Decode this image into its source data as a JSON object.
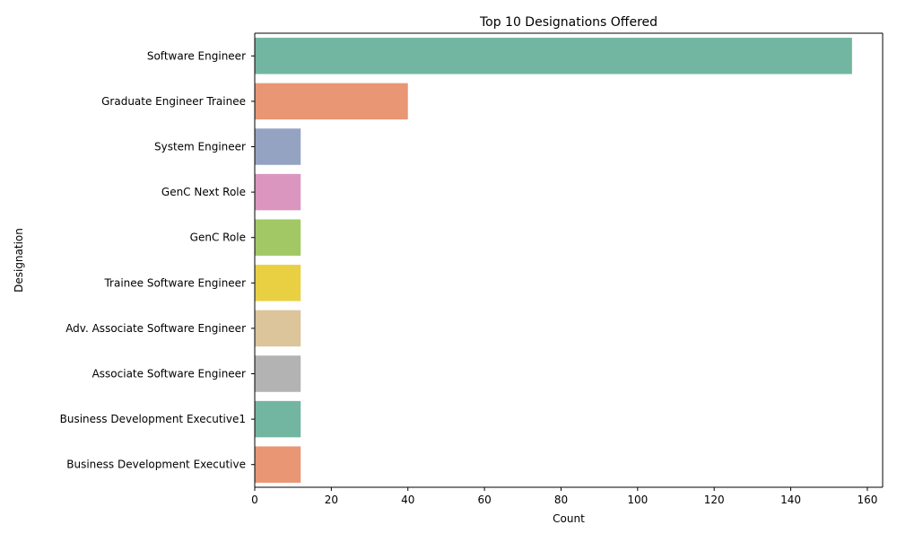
{
  "chart_data": {
    "type": "bar",
    "orientation": "horizontal",
    "title": "Top 10 Designations Offered",
    "xlabel": "Count",
    "ylabel": "Designation",
    "xlim": [
      0,
      164
    ],
    "xticks": [
      0,
      20,
      40,
      60,
      80,
      100,
      120,
      140,
      160
    ],
    "grid": false,
    "categories": [
      "Software Engineer",
      "Graduate Engineer Trainee",
      "System Engineer",
      "GenC Next Role",
      "GenC Role",
      "Trainee Software Engineer",
      "Adv. Associate Software Engineer",
      "Associate Software Engineer",
      "Business Development Executive1",
      "Business Development Executive"
    ],
    "values": [
      156,
      40,
      12,
      12,
      12,
      12,
      12,
      12,
      12,
      12
    ],
    "colors": [
      "#72b6a1",
      "#e99675",
      "#95a3c3",
      "#db96c0",
      "#a2c865",
      "#e9d043",
      "#dcc49b",
      "#b3b3b3",
      "#72b6a1",
      "#e99675"
    ]
  }
}
